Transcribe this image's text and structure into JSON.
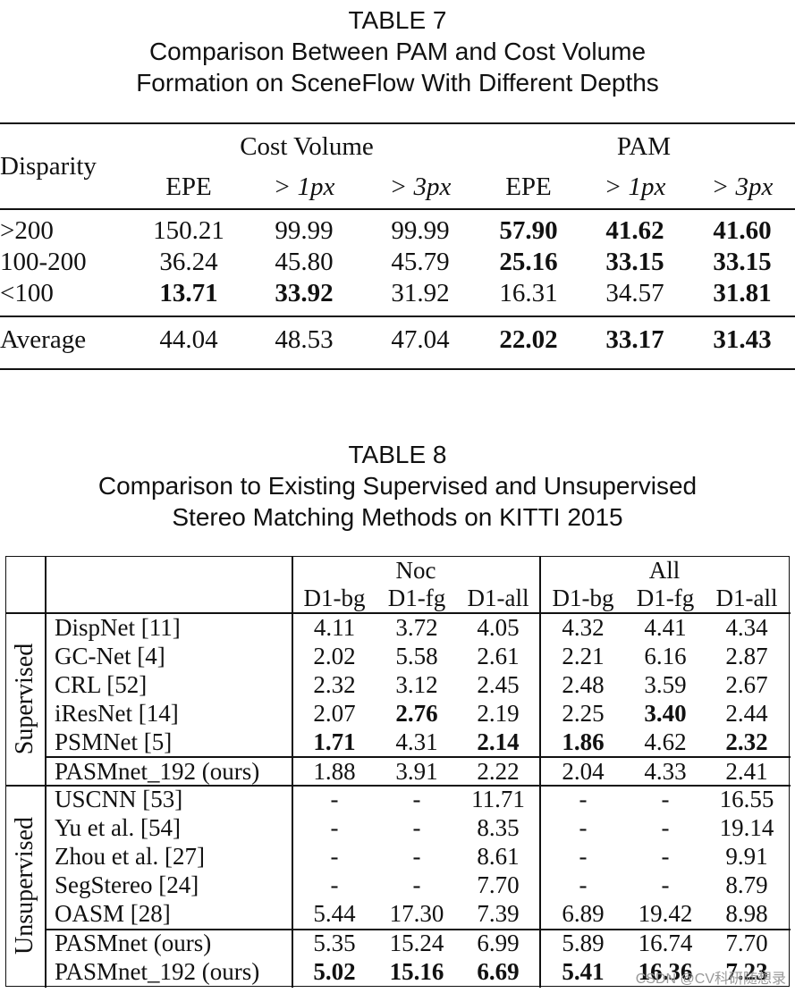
{
  "table7": {
    "caption": [
      "TABLE 7",
      "Comparison Between PAM and Cost Volume",
      "Formation on SceneFlow With Different Depths"
    ],
    "row_header": "Disparity",
    "groups": [
      "Cost Volume",
      "PAM"
    ],
    "cols": [
      "EPE",
      "> 1px",
      "> 3px",
      "EPE",
      "> 1px",
      "> 3px"
    ],
    "rows": [
      {
        "label": ">200",
        "values": [
          "150.21",
          "99.99",
          "99.99",
          "57.90",
          "41.62",
          "41.60"
        ],
        "bold": [
          false,
          false,
          false,
          true,
          true,
          true
        ]
      },
      {
        "label": "100-200",
        "values": [
          "36.24",
          "45.80",
          "45.79",
          "25.16",
          "33.15",
          "33.15"
        ],
        "bold": [
          false,
          false,
          false,
          true,
          true,
          true
        ]
      },
      {
        "label": "<100",
        "values": [
          "13.71",
          "33.92",
          "31.92",
          "16.31",
          "34.57",
          "31.81"
        ],
        "bold": [
          true,
          true,
          false,
          false,
          false,
          true
        ]
      },
      {
        "label": "Average",
        "values": [
          "44.04",
          "48.53",
          "47.04",
          "22.02",
          "33.17",
          "31.43"
        ],
        "bold": [
          false,
          false,
          false,
          true,
          true,
          true
        ]
      }
    ]
  },
  "table8": {
    "caption": [
      "TABLE 8",
      "Comparison to Existing Supervised and Unsupervised",
      "Stereo Matching Methods on KITTI 2015"
    ],
    "groups": [
      "Noc",
      "All"
    ],
    "cols": [
      "D1-bg",
      "D1-fg",
      "D1-all",
      "D1-bg",
      "D1-fg",
      "D1-all"
    ],
    "sections": [
      {
        "label": "Supervised",
        "rows": [
          {
            "method": "DispNet [11]",
            "values": [
              "4.11",
              "3.72",
              "4.05",
              "4.32",
              "4.41",
              "4.34"
            ],
            "bold": [
              false,
              false,
              false,
              false,
              false,
              false
            ]
          },
          {
            "method": "GC-Net [4]",
            "values": [
              "2.02",
              "5.58",
              "2.61",
              "2.21",
              "6.16",
              "2.87"
            ],
            "bold": [
              false,
              false,
              false,
              false,
              false,
              false
            ]
          },
          {
            "method": "CRL [52]",
            "values": [
              "2.32",
              "3.12",
              "2.45",
              "2.48",
              "3.59",
              "2.67"
            ],
            "bold": [
              false,
              false,
              false,
              false,
              false,
              false
            ]
          },
          {
            "method": "iResNet [14]",
            "values": [
              "2.07",
              "2.76",
              "2.19",
              "2.25",
              "3.40",
              "2.44"
            ],
            "bold": [
              false,
              true,
              false,
              false,
              true,
              false
            ]
          },
          {
            "method": "PSMNet [5]",
            "values": [
              "1.71",
              "4.31",
              "2.14",
              "1.86",
              "4.62",
              "2.32"
            ],
            "bold": [
              true,
              false,
              true,
              true,
              false,
              true
            ]
          },
          {
            "method": "PASMnet_192 (ours)",
            "values": [
              "1.88",
              "3.91",
              "2.22",
              "2.04",
              "4.33",
              "2.41"
            ],
            "bold": [
              false,
              false,
              false,
              false,
              false,
              false
            ]
          }
        ]
      },
      {
        "label": "Unsupervised",
        "rows": [
          {
            "method": "USCNN [53]",
            "values": [
              "-",
              "-",
              "11.71",
              "-",
              "-",
              "16.55"
            ],
            "bold": [
              false,
              false,
              false,
              false,
              false,
              false
            ]
          },
          {
            "method": "Yu et al. [54]",
            "values": [
              "-",
              "-",
              "8.35",
              "-",
              "-",
              "19.14"
            ],
            "bold": [
              false,
              false,
              false,
              false,
              false,
              false
            ]
          },
          {
            "method": "Zhou et al. [27]",
            "values": [
              "-",
              "-",
              "8.61",
              "-",
              "-",
              "9.91"
            ],
            "bold": [
              false,
              false,
              false,
              false,
              false,
              false
            ]
          },
          {
            "method": "SegStereo [24]",
            "values": [
              "-",
              "-",
              "7.70",
              "-",
              "-",
              "8.79"
            ],
            "bold": [
              false,
              false,
              false,
              false,
              false,
              false
            ]
          },
          {
            "method": "OASM [28]",
            "values": [
              "5.44",
              "17.30",
              "7.39",
              "6.89",
              "19.42",
              "8.98"
            ],
            "bold": [
              false,
              false,
              false,
              false,
              false,
              false
            ]
          },
          {
            "method": "PASMnet (ours)",
            "values": [
              "5.35",
              "15.24",
              "6.99",
              "5.89",
              "16.74",
              "7.70"
            ],
            "bold": [
              false,
              false,
              false,
              false,
              false,
              false
            ]
          },
          {
            "method": "PASMnet_192 (ours)",
            "values": [
              "5.02",
              "15.16",
              "6.69",
              "5.41",
              "16.36",
              "7.23"
            ],
            "bold": [
              true,
              true,
              true,
              true,
              true,
              true
            ]
          }
        ]
      }
    ]
  },
  "watermark": "CSDN @CV科研随想录"
}
